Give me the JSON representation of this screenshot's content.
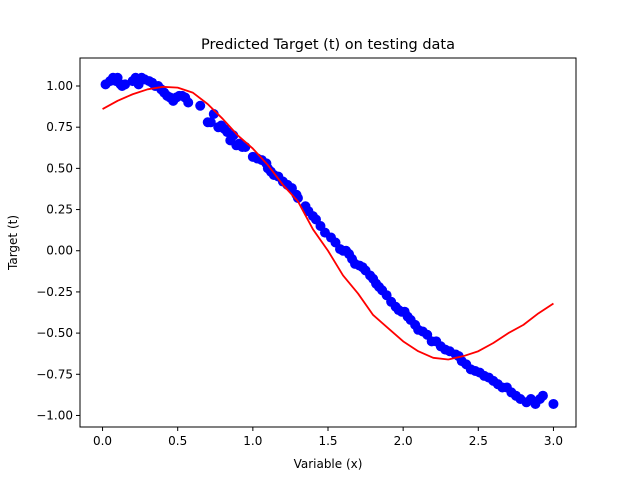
{
  "chart_data": {
    "type": "scatter",
    "title": "Predicted Target (t) on testing data",
    "xlabel": "Variable (x)",
    "ylabel": "Target (t)",
    "xlim": [
      -0.15,
      3.15
    ],
    "ylim": [
      -1.07,
      1.17
    ],
    "grid": false,
    "x_ticks": [
      0.0,
      0.5,
      1.0,
      1.5,
      2.0,
      2.5,
      3.0
    ],
    "x_tick_labels": [
      "0.0",
      "0.5",
      "1.0",
      "1.5",
      "2.0",
      "2.5",
      "3.0"
    ],
    "y_ticks": [
      -1.0,
      -0.75,
      -0.5,
      -0.25,
      0.0,
      0.25,
      0.5,
      0.75,
      1.0
    ],
    "y_tick_labels": [
      "−1.00",
      "−0.75",
      "−0.50",
      "−0.25",
      "0.00",
      "0.25",
      "0.50",
      "0.75",
      "1.00"
    ],
    "series": [
      {
        "kind": "scatter",
        "color": "#0000ff",
        "points": [
          [
            0.02,
            1.01
          ],
          [
            0.05,
            1.03
          ],
          [
            0.07,
            1.05
          ],
          [
            0.09,
            1.03
          ],
          [
            0.1,
            1.05
          ],
          [
            0.12,
            1.01
          ],
          [
            0.13,
            1.0
          ],
          [
            0.15,
            1.01
          ],
          [
            0.2,
            1.03
          ],
          [
            0.22,
            1.05
          ],
          [
            0.24,
            1.01
          ],
          [
            0.26,
            1.05
          ],
          [
            0.28,
            1.04
          ],
          [
            0.31,
            1.03
          ],
          [
            0.33,
            1.02
          ],
          [
            0.35,
            1.0
          ],
          [
            0.37,
            1.0
          ],
          [
            0.39,
            0.98
          ],
          [
            0.41,
            0.96
          ],
          [
            0.43,
            0.94
          ],
          [
            0.45,
            0.93
          ],
          [
            0.47,
            0.91
          ],
          [
            0.49,
            0.93
          ],
          [
            0.51,
            0.94
          ],
          [
            0.53,
            0.94
          ],
          [
            0.55,
            0.93
          ],
          [
            0.57,
            0.9
          ],
          [
            0.65,
            0.88
          ],
          [
            0.7,
            0.78
          ],
          [
            0.72,
            0.78
          ],
          [
            0.74,
            0.83
          ],
          [
            0.77,
            0.75
          ],
          [
            0.79,
            0.76
          ],
          [
            0.81,
            0.74
          ],
          [
            0.83,
            0.72
          ],
          [
            0.85,
            0.67
          ],
          [
            0.87,
            0.7
          ],
          [
            0.89,
            0.64
          ],
          [
            0.91,
            0.65
          ],
          [
            0.93,
            0.63
          ],
          [
            0.95,
            0.63
          ],
          [
            1.0,
            0.57
          ],
          [
            1.03,
            0.56
          ],
          [
            1.06,
            0.55
          ],
          [
            1.09,
            0.53
          ],
          [
            1.1,
            0.5
          ],
          [
            1.12,
            0.48
          ],
          [
            1.14,
            0.46
          ],
          [
            1.17,
            0.45
          ],
          [
            1.2,
            0.42
          ],
          [
            1.23,
            0.4
          ],
          [
            1.26,
            0.38
          ],
          [
            1.29,
            0.34
          ],
          [
            1.3,
            0.32
          ],
          [
            1.35,
            0.27
          ],
          [
            1.37,
            0.24
          ],
          [
            1.4,
            0.21
          ],
          [
            1.42,
            0.19
          ],
          [
            1.45,
            0.15
          ],
          [
            1.48,
            0.11
          ],
          [
            1.52,
            0.08
          ],
          [
            1.55,
            0.05
          ],
          [
            1.58,
            0.01
          ],
          [
            1.6,
            0.0
          ],
          [
            1.62,
            0.0
          ],
          [
            1.64,
            -0.02
          ],
          [
            1.66,
            -0.05
          ],
          [
            1.68,
            -0.08
          ],
          [
            1.71,
            -0.09
          ],
          [
            1.73,
            -0.1
          ],
          [
            1.75,
            -0.12
          ],
          [
            1.78,
            -0.15
          ],
          [
            1.8,
            -0.17
          ],
          [
            1.82,
            -0.2
          ],
          [
            1.84,
            -0.22
          ],
          [
            1.86,
            -0.24
          ],
          [
            1.89,
            -0.27
          ],
          [
            1.92,
            -0.31
          ],
          [
            1.95,
            -0.34
          ],
          [
            1.97,
            -0.36
          ],
          [
            1.99,
            -0.37
          ],
          [
            2.01,
            -0.37
          ],
          [
            2.03,
            -0.4
          ],
          [
            2.05,
            -0.42
          ],
          [
            2.08,
            -0.45
          ],
          [
            2.1,
            -0.48
          ],
          [
            2.13,
            -0.49
          ],
          [
            2.16,
            -0.51
          ],
          [
            2.19,
            -0.55
          ],
          [
            2.22,
            -0.55
          ],
          [
            2.25,
            -0.58
          ],
          [
            2.28,
            -0.6
          ],
          [
            2.31,
            -0.61
          ],
          [
            2.35,
            -0.63
          ],
          [
            2.37,
            -0.64
          ],
          [
            2.39,
            -0.67
          ],
          [
            2.42,
            -0.69
          ],
          [
            2.45,
            -0.72
          ],
          [
            2.48,
            -0.73
          ],
          [
            2.51,
            -0.74
          ],
          [
            2.54,
            -0.76
          ],
          [
            2.57,
            -0.77
          ],
          [
            2.6,
            -0.79
          ],
          [
            2.63,
            -0.81
          ],
          [
            2.66,
            -0.83
          ],
          [
            2.69,
            -0.83
          ],
          [
            2.72,
            -0.86
          ],
          [
            2.75,
            -0.88
          ],
          [
            2.78,
            -0.9
          ],
          [
            2.82,
            -0.92
          ],
          [
            2.85,
            -0.9
          ],
          [
            2.88,
            -0.93
          ],
          [
            2.91,
            -0.9
          ],
          [
            2.93,
            -0.88
          ],
          [
            3.0,
            -0.93
          ]
        ]
      },
      {
        "kind": "line",
        "color": "#ff0000",
        "points": [
          [
            0.0,
            0.86
          ],
          [
            0.1,
            0.91
          ],
          [
            0.2,
            0.95
          ],
          [
            0.3,
            0.98
          ],
          [
            0.4,
            0.995
          ],
          [
            0.5,
            0.99
          ],
          [
            0.6,
            0.96
          ],
          [
            0.7,
            0.89
          ],
          [
            0.8,
            0.8
          ],
          [
            0.9,
            0.7
          ],
          [
            1.0,
            0.62
          ],
          [
            1.1,
            0.52
          ],
          [
            1.2,
            0.4
          ],
          [
            1.3,
            0.3
          ],
          [
            1.4,
            0.13
          ],
          [
            1.5,
            0.0
          ],
          [
            1.6,
            -0.15
          ],
          [
            1.7,
            -0.26
          ],
          [
            1.8,
            -0.39
          ],
          [
            1.9,
            -0.47
          ],
          [
            2.0,
            -0.55
          ],
          [
            2.1,
            -0.61
          ],
          [
            2.2,
            -0.65
          ],
          [
            2.3,
            -0.66
          ],
          [
            2.4,
            -0.64
          ],
          [
            2.5,
            -0.61
          ],
          [
            2.6,
            -0.56
          ],
          [
            2.7,
            -0.5
          ],
          [
            2.8,
            -0.45
          ],
          [
            2.9,
            -0.38
          ],
          [
            3.0,
            -0.32
          ]
        ]
      }
    ]
  }
}
